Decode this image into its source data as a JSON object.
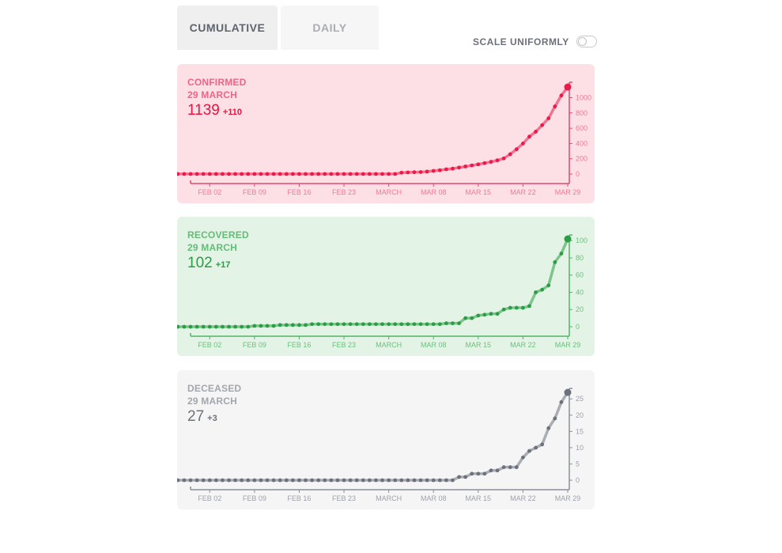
{
  "tabs": [
    {
      "label": "CUMULATIVE",
      "active": true
    },
    {
      "label": "DAILY",
      "active": false
    }
  ],
  "scale_toggle": {
    "label": "SCALE UNIFORMLY",
    "on": false
  },
  "chart_data": [
    {
      "type": "line",
      "title": "CONFIRMED",
      "date_label": "29 MARCH",
      "latest_value": "1139",
      "latest_delta": "+110",
      "x_tick_labels": [
        "FEB 02",
        "FEB 09",
        "FEB 16",
        "FEB 23",
        "MARCH",
        "MAR 08",
        "MAR 15",
        "MAR 22",
        "MAR 29"
      ],
      "y_ticks": [
        0,
        200,
        400,
        600,
        800,
        1000
      ],
      "ylim": [
        0,
        1150
      ],
      "x_start": "2020-01-30",
      "x_end": "2020-03-29",
      "values": [
        1,
        1,
        1,
        1,
        1,
        1,
        1,
        1,
        1,
        1,
        1,
        1,
        1,
        1,
        1,
        1,
        1,
        1,
        1,
        1,
        1,
        1,
        1,
        1,
        1,
        1,
        1,
        1,
        1,
        1,
        1,
        1,
        1,
        1,
        1,
        1,
        18,
        21,
        24,
        26,
        32,
        41,
        50,
        62,
        71,
        85,
        99,
        113,
        127,
        143,
        160,
        180,
        205,
        260,
        325,
        400,
        490,
        555,
        640,
        730,
        885,
        1029,
        1139
      ],
      "colors": {
        "bg": "#fde0e6",
        "line": "#ea1a4a",
        "axis": "#e6466a",
        "tick": "#ef7a93",
        "title": "#ef6585",
        "count": "#e8123f"
      }
    },
    {
      "type": "line",
      "title": "RECOVERED",
      "date_label": "29 MARCH",
      "latest_value": "102",
      "latest_delta": "+17",
      "x_tick_labels": [
        "FEB 02",
        "FEB 09",
        "FEB 16",
        "FEB 23",
        "MARCH",
        "MAR 08",
        "MAR 15",
        "MAR 22",
        "MAR 29"
      ],
      "y_ticks": [
        0,
        20,
        40,
        60,
        80,
        100
      ],
      "ylim": [
        0,
        102
      ],
      "x_start": "2020-01-30",
      "x_end": "2020-03-29",
      "values": [
        0,
        0,
        0,
        0,
        0,
        0,
        0,
        0,
        0,
        0,
        0,
        0,
        0,
        1,
        1,
        1,
        1,
        2,
        2,
        2,
        2,
        2,
        3,
        3,
        3,
        3,
        3,
        3,
        3,
        3,
        3,
        3,
        3,
        3,
        3,
        3,
        3,
        3,
        3,
        3,
        3,
        3,
        3,
        4,
        4,
        4,
        10,
        10,
        13,
        14,
        15,
        15,
        20,
        22,
        22,
        22,
        24,
        40,
        43,
        48,
        75,
        85,
        102
      ],
      "colors": {
        "bg": "#e3f3e5",
        "line": "#2a9d45",
        "axis": "#52b567",
        "tick": "#6cc07f",
        "title": "#63bd78",
        "count": "#2a9d45"
      }
    },
    {
      "type": "line",
      "title": "DECEASED",
      "date_label": "29 MARCH",
      "latest_value": "27",
      "latest_delta": "+3",
      "x_tick_labels": [
        "FEB 02",
        "FEB 09",
        "FEB 16",
        "FEB 23",
        "MARCH",
        "MAR 08",
        "MAR 15",
        "MAR 22",
        "MAR 29"
      ],
      "y_ticks": [
        0,
        5,
        10,
        15,
        20,
        25
      ],
      "ylim": [
        0,
        27
      ],
      "x_start": "2020-01-30",
      "x_end": "2020-03-29",
      "values": [
        0,
        0,
        0,
        0,
        0,
        0,
        0,
        0,
        0,
        0,
        0,
        0,
        0,
        0,
        0,
        0,
        0,
        0,
        0,
        0,
        0,
        0,
        0,
        0,
        0,
        0,
        0,
        0,
        0,
        0,
        0,
        0,
        0,
        0,
        0,
        0,
        0,
        0,
        0,
        0,
        0,
        0,
        0,
        0,
        1,
        1,
        2,
        2,
        2,
        3,
        3,
        4,
        4,
        4,
        7,
        9,
        10,
        11,
        16,
        19,
        24,
        27
      ],
      "colors": {
        "bg": "#f5f5f6",
        "line": "#6c717b",
        "axis": "#8b8f98",
        "tick": "#9ea2aa",
        "title": "#a3a6ad",
        "count": "#6c717b"
      }
    }
  ]
}
